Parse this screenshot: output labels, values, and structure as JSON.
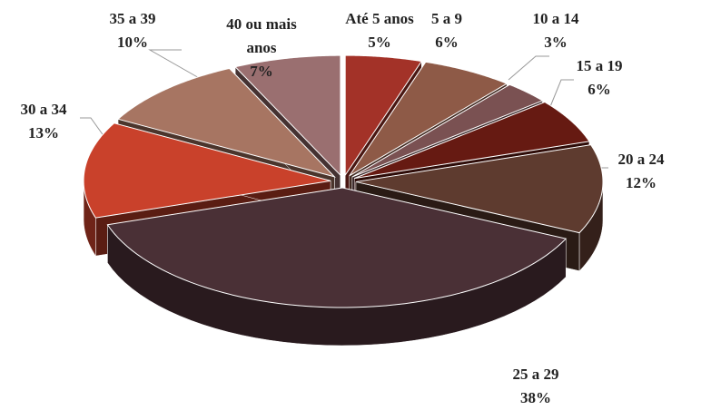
{
  "chart_data": {
    "type": "pie3d",
    "categories": [
      "Até 5 anos",
      "5 a 9",
      "10 a 14",
      "15 a 19",
      "20 a 24",
      "25 a 29",
      "30 a 34",
      "35 a 39",
      "40 ou mais anos"
    ],
    "values": [
      5,
      6,
      3,
      6,
      12,
      38,
      13,
      10,
      7
    ],
    "value_labels": [
      "5%",
      "6%",
      "3%",
      "6%",
      "12%",
      "38%",
      "13%",
      "10%",
      "7%"
    ],
    "colors": [
      "#a33228",
      "#8e5a47",
      "#7a5152",
      "#661a12",
      "#5e3b2f",
      "#4a3036",
      "#c9412b",
      "#a77562",
      "#9a6f70"
    ]
  }
}
